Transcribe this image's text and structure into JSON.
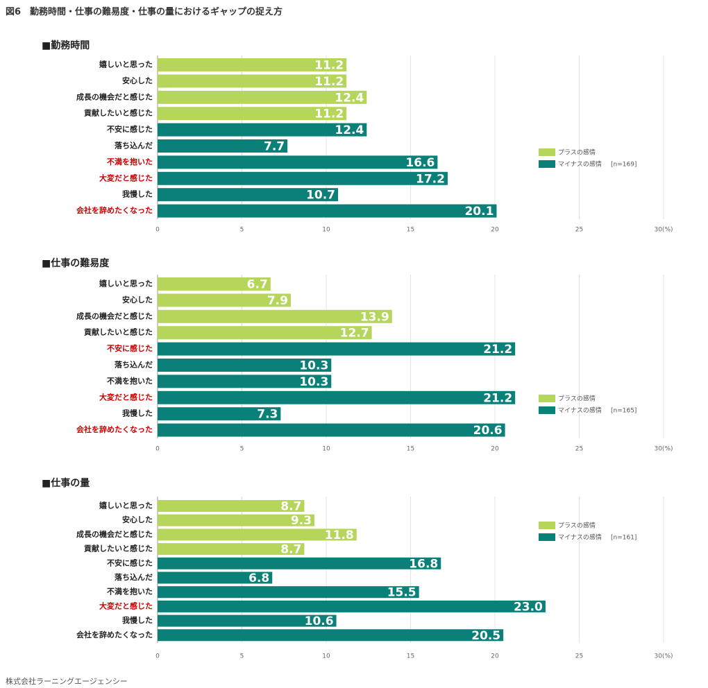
{
  "figure_title": "図6　勤務時間・仕事の難易度・仕事の量におけるギャップの捉え方",
  "footer": "株式会社ラーニングエージェンシー",
  "colors": {
    "plus": "#b5d65a",
    "minus": "#0a8079",
    "highlight": "#cc0000"
  },
  "chart_data": [
    {
      "type": "bar",
      "orientation": "horizontal",
      "title": "■勤務時間",
      "categories": [
        "嬉しいと思った",
        "安心した",
        "成長の機会だと感じた",
        "貢献したいと感じた",
        "不安に感じた",
        "落ち込んだ",
        "不満を抱いた",
        "大変だと感じた",
        "我慢した",
        "会社を辞めたくなった"
      ],
      "values": [
        11.2,
        11.2,
        12.4,
        11.2,
        12.4,
        7.7,
        16.6,
        17.2,
        10.7,
        20.1
      ],
      "value_labels": [
        "11.2",
        "11.2",
        "12.4",
        "11.2",
        "12.4",
        "7.7",
        "16.6",
        "17.2",
        "10.7",
        "20.1"
      ],
      "groups": [
        "plus",
        "plus",
        "plus",
        "plus",
        "minus",
        "minus",
        "minus",
        "minus",
        "minus",
        "minus"
      ],
      "highlighted": [
        false,
        false,
        false,
        false,
        false,
        false,
        true,
        true,
        false,
        true
      ],
      "xlim": [
        0,
        30
      ],
      "xticks": [
        0,
        5,
        10,
        15,
        20,
        25,
        30
      ],
      "xtick_labels": [
        "0",
        "5",
        "10",
        "15",
        "20",
        "25",
        "30(%)"
      ],
      "legend": {
        "plus_label": "プラスの感情",
        "minus_label": "マイナスの感情",
        "n": "[n=169]",
        "position": "right-middle"
      }
    },
    {
      "type": "bar",
      "orientation": "horizontal",
      "title": "■仕事の難易度",
      "categories": [
        "嬉しいと思った",
        "安心した",
        "成長の機会だと感じた",
        "貢献したいと感じた",
        "不安に感じた",
        "落ち込んだ",
        "不満を抱いた",
        "大変だと感じた",
        "我慢した",
        "会社を辞めたくなった"
      ],
      "values": [
        6.7,
        7.9,
        13.9,
        12.7,
        21.2,
        10.3,
        10.3,
        21.2,
        7.3,
        20.6
      ],
      "value_labels": [
        "6.7",
        "7.9",
        "13.9",
        "12.7",
        "21.2",
        "10.3",
        "10.3",
        "21.2",
        "7.3",
        "20.6"
      ],
      "groups": [
        "plus",
        "plus",
        "plus",
        "plus",
        "minus",
        "minus",
        "minus",
        "minus",
        "minus",
        "minus"
      ],
      "highlighted": [
        false,
        false,
        false,
        false,
        true,
        false,
        false,
        true,
        false,
        true
      ],
      "xlim": [
        0,
        30
      ],
      "xticks": [
        0,
        5,
        10,
        15,
        20,
        25,
        30
      ],
      "xtick_labels": [
        "0",
        "5",
        "10",
        "15",
        "20",
        "25",
        "30(%)"
      ],
      "legend": {
        "plus_label": "プラスの感情",
        "minus_label": "マイナスの感情",
        "n": "[n=165]",
        "position": "right-bottom"
      }
    },
    {
      "type": "bar",
      "orientation": "horizontal",
      "title": "■仕事の量",
      "categories": [
        "嬉しいと思った",
        "安心した",
        "成長の機会だと感じた",
        "貢献したいと感じた",
        "不安に感じた",
        "落ち込んだ",
        "不満を抱いた",
        "大変だと感じた",
        "我慢した",
        "会社を辞めたくなった"
      ],
      "values": [
        8.7,
        9.3,
        11.8,
        8.7,
        16.8,
        6.8,
        15.5,
        23.0,
        10.6,
        20.5
      ],
      "value_labels": [
        "8.7",
        "9.3",
        "11.8",
        "8.7",
        "16.8",
        "6.8",
        "15.5",
        "23.0",
        "10.6",
        "20.5"
      ],
      "groups": [
        "plus",
        "plus",
        "plus",
        "plus",
        "minus",
        "minus",
        "minus",
        "minus",
        "minus",
        "minus"
      ],
      "highlighted": [
        false,
        false,
        false,
        false,
        false,
        false,
        false,
        true,
        false,
        false
      ],
      "xlim": [
        0,
        30
      ],
      "xticks": [
        0,
        5,
        10,
        15,
        20,
        25,
        30
      ],
      "xtick_labels": [
        "0",
        "5",
        "10",
        "15",
        "20",
        "25",
        "30(%)"
      ],
      "legend": {
        "plus_label": "プラスの感情",
        "minus_label": "マイナスの感情",
        "n": "[n=161]",
        "position": "right-top"
      }
    }
  ]
}
